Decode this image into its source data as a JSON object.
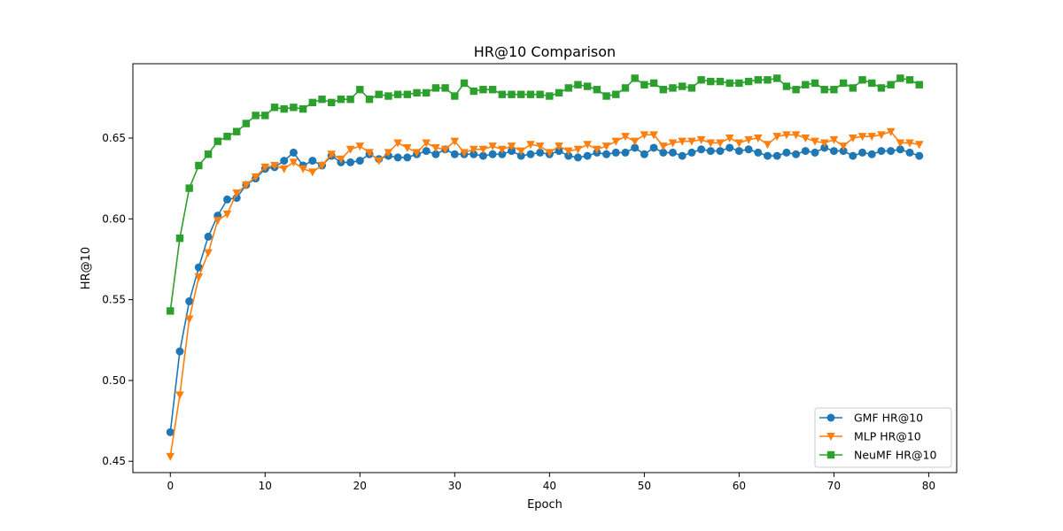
{
  "chart_data": {
    "type": "line",
    "title": "HR@10 Comparison",
    "xlabel": "Epoch",
    "ylabel": "HR@10",
    "xlim": [
      -3.95,
      82.95
    ],
    "ylim": [
      0.443,
      0.696
    ],
    "xticks": [
      0,
      10,
      20,
      30,
      40,
      50,
      60,
      70,
      80
    ],
    "yticks": [
      0.45,
      0.5,
      0.55,
      0.6,
      0.65
    ],
    "xtick_labels": [
      "0",
      "10",
      "20",
      "30",
      "40",
      "50",
      "60",
      "70",
      "80"
    ],
    "ytick_labels": [
      "0.45",
      "0.50",
      "0.55",
      "0.60",
      "0.65"
    ],
    "grid": false,
    "legend_position": "bottom-right",
    "series": [
      {
        "name": "GMF HR@10",
        "color": "#1f77b4",
        "marker": "circle",
        "values": [
          0.468,
          0.518,
          0.549,
          0.57,
          0.589,
          0.602,
          0.612,
          0.613,
          0.621,
          0.625,
          0.631,
          0.632,
          0.636,
          0.641,
          0.633,
          0.636,
          0.633,
          0.639,
          0.635,
          0.635,
          0.636,
          0.64,
          0.637,
          0.639,
          0.638,
          0.638,
          0.64,
          0.642,
          0.64,
          0.643,
          0.64,
          0.64,
          0.64,
          0.639,
          0.64,
          0.64,
          0.642,
          0.639,
          0.64,
          0.641,
          0.64,
          0.642,
          0.639,
          0.638,
          0.639,
          0.641,
          0.64,
          0.641,
          0.641,
          0.644,
          0.64,
          0.644,
          0.641,
          0.641,
          0.639,
          0.641,
          0.643,
          0.642,
          0.642,
          0.644,
          0.642,
          0.643,
          0.641,
          0.639,
          0.639,
          0.641,
          0.64,
          0.642,
          0.641,
          0.644,
          0.642,
          0.642,
          0.639,
          0.641,
          0.64,
          0.642,
          0.642,
          0.643,
          0.641,
          0.639
        ]
      },
      {
        "name": "MLP HR@10",
        "color": "#ff7f0e",
        "marker": "triangle-down",
        "values": [
          0.453,
          0.491,
          0.538,
          0.564,
          0.579,
          0.599,
          0.603,
          0.616,
          0.621,
          0.626,
          0.632,
          0.633,
          0.631,
          0.635,
          0.631,
          0.629,
          0.633,
          0.64,
          0.637,
          0.643,
          0.645,
          0.641,
          0.636,
          0.641,
          0.647,
          0.644,
          0.641,
          0.647,
          0.644,
          0.643,
          0.648,
          0.641,
          0.643,
          0.643,
          0.645,
          0.643,
          0.645,
          0.642,
          0.646,
          0.645,
          0.641,
          0.645,
          0.642,
          0.643,
          0.646,
          0.643,
          0.645,
          0.648,
          0.651,
          0.648,
          0.652,
          0.652,
          0.645,
          0.647,
          0.648,
          0.648,
          0.649,
          0.647,
          0.647,
          0.65,
          0.647,
          0.649,
          0.65,
          0.646,
          0.651,
          0.652,
          0.652,
          0.65,
          0.648,
          0.647,
          0.649,
          0.645,
          0.65,
          0.651,
          0.651,
          0.652,
          0.654,
          0.647,
          0.647,
          0.646
        ]
      },
      {
        "name": "NeuMF HR@10",
        "color": "#2ca02c",
        "marker": "square",
        "values": [
          0.543,
          0.588,
          0.619,
          0.633,
          0.64,
          0.648,
          0.651,
          0.654,
          0.659,
          0.664,
          0.664,
          0.669,
          0.668,
          0.669,
          0.668,
          0.672,
          0.674,
          0.672,
          0.674,
          0.674,
          0.68,
          0.674,
          0.677,
          0.676,
          0.677,
          0.677,
          0.678,
          0.678,
          0.681,
          0.681,
          0.676,
          0.684,
          0.679,
          0.68,
          0.68,
          0.677,
          0.677,
          0.677,
          0.677,
          0.677,
          0.676,
          0.678,
          0.681,
          0.683,
          0.682,
          0.68,
          0.676,
          0.677,
          0.681,
          0.687,
          0.683,
          0.684,
          0.68,
          0.681,
          0.682,
          0.681,
          0.686,
          0.685,
          0.685,
          0.684,
          0.684,
          0.685,
          0.686,
          0.686,
          0.687,
          0.682,
          0.68,
          0.683,
          0.684,
          0.68,
          0.68,
          0.684,
          0.681,
          0.686,
          0.684,
          0.681,
          0.683,
          0.687,
          0.686,
          0.683
        ]
      }
    ]
  }
}
